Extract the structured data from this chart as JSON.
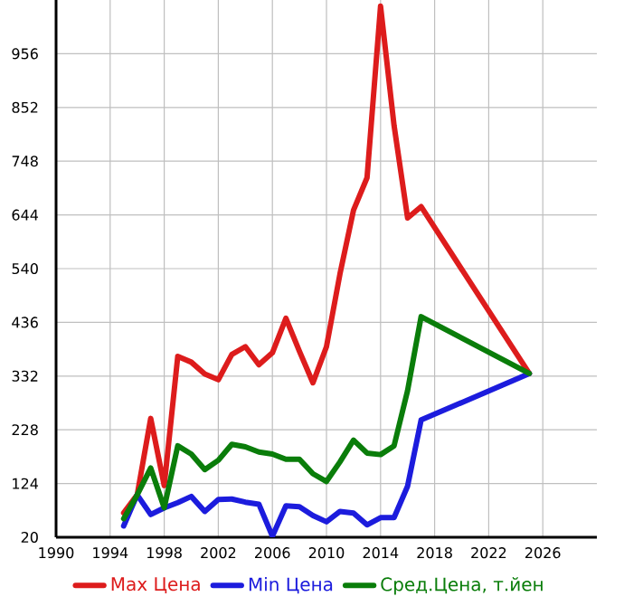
{
  "chart_data": {
    "type": "line",
    "x": [
      1995,
      1996,
      1997,
      1998,
      1999,
      2000,
      2001,
      2002,
      2003,
      2004,
      2005,
      2006,
      2007,
      2008,
      2009,
      2010,
      2011,
      2012,
      2013,
      2014,
      2015,
      2016,
      2017,
      2025
    ],
    "series": [
      {
        "name": "Max Цена",
        "color": "#dd1c1c",
        "values": [
          67,
          102,
          250,
          120,
          370,
          359,
          336,
          325,
          374,
          389,
          354,
          377,
          444,
          380,
          319,
          389,
          530,
          653,
          716,
          1048,
          817,
          638,
          660,
          337
        ]
      },
      {
        "name": "Min Цена",
        "color": "#1c1cdd",
        "values": [
          42,
          102,
          64,
          77,
          87,
          99,
          70,
          93,
          94,
          88,
          84,
          22,
          81,
          79,
          62,
          50,
          70,
          67,
          44,
          58,
          58,
          119,
          247,
          337
        ]
      },
      {
        "name": "Сред.Цена, т.йен",
        "color": "#0a7d0a",
        "values": [
          56,
          102,
          154,
          77,
          197,
          181,
          151,
          169,
          200,
          195,
          185,
          181,
          171,
          171,
          143,
          128,
          166,
          208,
          183,
          180,
          197,
          304,
          447,
          337
        ]
      }
    ],
    "xlim": [
      1990,
      2030
    ],
    "xticks": [
      1990,
      1994,
      1998,
      2002,
      2006,
      2010,
      2014,
      2018,
      2022,
      2026
    ],
    "ylim": [
      20,
      1060
    ],
    "yticks": [
      20,
      124,
      228,
      332,
      436,
      540,
      644,
      748,
      852,
      956
    ],
    "grid": true,
    "legend": "bottom",
    "marker": "none",
    "line_style": "solid"
  }
}
